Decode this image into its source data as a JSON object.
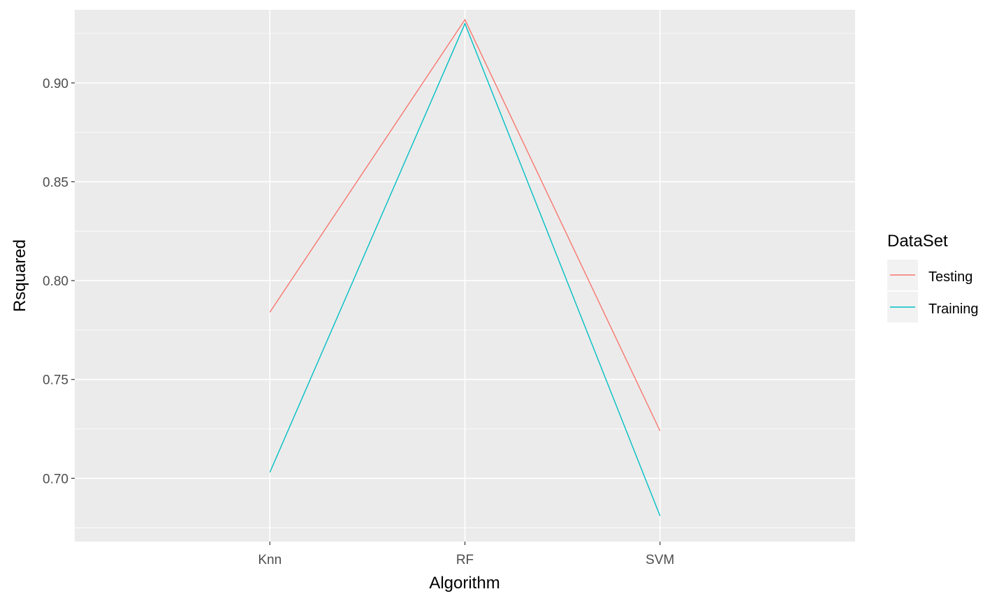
{
  "chart_data": {
    "type": "line",
    "title": "",
    "xlabel": "Algorithm",
    "ylabel": "Rsquared",
    "categories": [
      "Knn",
      "RF",
      "SVM"
    ],
    "ylim": [
      0.668,
      0.937
    ],
    "yticks": [
      0.7,
      0.75,
      0.8,
      0.85,
      0.9
    ],
    "ytick_labels": [
      "0.70",
      "0.75",
      "0.80",
      "0.85",
      "0.90"
    ],
    "grid": true,
    "legend": {
      "title": "DataSet",
      "position": "right"
    },
    "series": [
      {
        "name": "Testing",
        "color": "#F8766D",
        "values": [
          0.784,
          0.932,
          0.724
        ]
      },
      {
        "name": "Training",
        "color": "#00BFC4",
        "values": [
          0.703,
          0.93,
          0.681
        ]
      }
    ]
  }
}
